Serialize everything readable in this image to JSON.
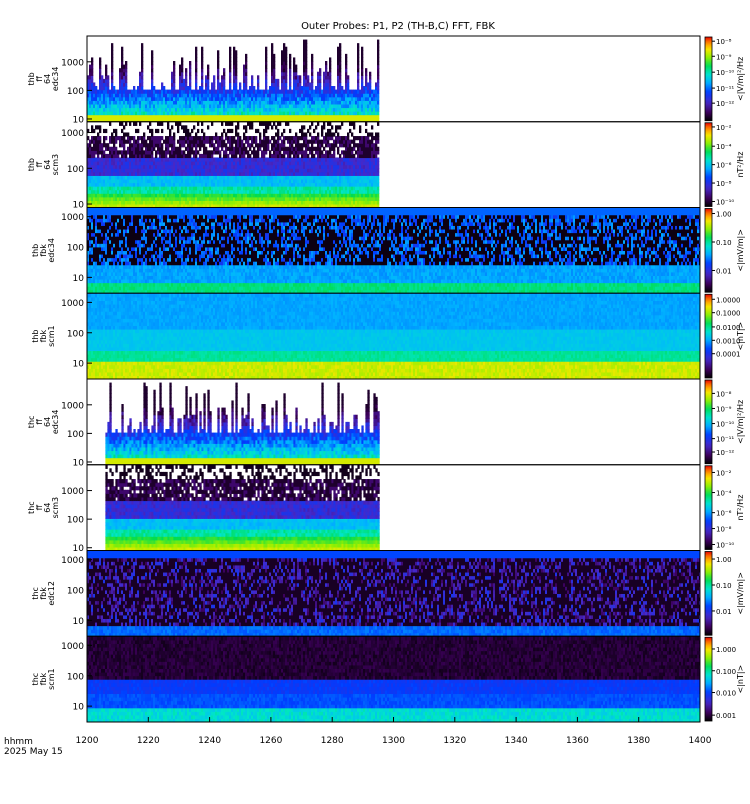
{
  "title": "Outer Probes: P1, P2 (TH-B,C) FFT, FBK",
  "footer": {
    "time_label": "hhmm",
    "date_label": "2025 May 15"
  },
  "x_axis": {
    "range": [
      1200,
      1400
    ],
    "ticks": [
      "1200",
      "1220",
      "1240",
      "1260",
      "1280",
      "1300",
      "1320",
      "1340",
      "1360",
      "1380",
      "1400"
    ]
  },
  "chart_data": [
    {
      "type": "heatmap",
      "name": "thb-ffp-e34",
      "ylabel_lines": [
        "thb",
        "ff",
        "64",
        "edc34"
      ],
      "y_ticks": [
        {
          "value": 10,
          "label": "10"
        },
        {
          "value": 100,
          "label": "100"
        },
        {
          "value": 1000,
          "label": "1000"
        }
      ],
      "ylim": [
        8,
        8000
      ],
      "y_scale": "log",
      "data_x_range": [
        1200,
        1295
      ],
      "style": "spiky",
      "colorbar": {
        "label": "<|V/m|²/Hz",
        "ticks": [
          {
            "label": "10⁻⁸",
            "frac": 0.05
          },
          {
            "label": "10⁻⁹",
            "frac": 0.23
          },
          {
            "label": "10⁻¹⁰",
            "frac": 0.42
          },
          {
            "label": "10⁻¹¹",
            "frac": 0.61
          },
          {
            "label": "10⁻¹²",
            "frac": 0.79
          }
        ]
      }
    },
    {
      "type": "heatmap",
      "name": "thb-ffp-scm3",
      "ylabel_lines": [
        "thb",
        "ff",
        "64",
        "scm3"
      ],
      "y_ticks": [
        {
          "value": 10,
          "label": "10"
        },
        {
          "value": 100,
          "label": "100"
        },
        {
          "value": 1000,
          "label": "1000"
        }
      ],
      "ylim": [
        8,
        2000
      ],
      "y_scale": "log",
      "data_x_range": [
        1200,
        1295
      ],
      "style": "spectrum-with-noise",
      "colorbar": {
        "label": "nT²/Hz",
        "ticks": [
          {
            "label": "10⁻²",
            "frac": 0.05
          },
          {
            "label": "10⁻⁴",
            "frac": 0.28
          },
          {
            "label": "10⁻⁶",
            "frac": 0.5
          },
          {
            "label": "10⁻⁸",
            "frac": 0.72
          },
          {
            "label": "10⁻¹⁰",
            "frac": 0.94
          }
        ]
      }
    },
    {
      "type": "heatmap",
      "name": "thb-fbk-e34",
      "ylabel_lines": [
        "thb",
        "fbk",
        "edc34"
      ],
      "y_ticks": [
        {
          "value": 10,
          "label": "10"
        },
        {
          "value": 100,
          "label": "100"
        },
        {
          "value": 1000,
          "label": "1000"
        }
      ],
      "ylim": [
        3,
        2000
      ],
      "y_scale": "log",
      "data_x_range": [
        1200,
        1400
      ],
      "style": "fbk-dark",
      "colorbar": {
        "label": "<|mV/m|>",
        "ticks": [
          {
            "label": "1.00",
            "frac": 0.06
          },
          {
            "label": "0.10",
            "frac": 0.4
          },
          {
            "label": "0.01",
            "frac": 0.74
          }
        ]
      }
    },
    {
      "type": "heatmap",
      "name": "thb-fbk-scm1",
      "ylabel_lines": [
        "thb",
        "fbk",
        "scm1"
      ],
      "y_ticks": [
        {
          "value": 10,
          "label": "10"
        },
        {
          "value": 100,
          "label": "100"
        },
        {
          "value": 1000,
          "label": "1000"
        }
      ],
      "ylim": [
        3,
        2000
      ],
      "y_scale": "log",
      "data_x_range": [
        1200,
        1400
      ],
      "style": "fbk-blue",
      "colorbar": {
        "label": "<|nT|>",
        "ticks": [
          {
            "label": "1.0000",
            "frac": 0.06
          },
          {
            "label": "0.1000",
            "frac": 0.22
          },
          {
            "label": "0.0100",
            "frac": 0.39
          },
          {
            "label": "0.0010",
            "frac": 0.55
          },
          {
            "label": "0.0001",
            "frac": 0.71
          }
        ]
      }
    },
    {
      "type": "heatmap",
      "name": "thc-ffp-e34",
      "ylabel_lines": [
        "thc",
        "ff",
        "64",
        "edc34"
      ],
      "y_ticks": [
        {
          "value": 10,
          "label": "10"
        },
        {
          "value": 100,
          "label": "100"
        },
        {
          "value": 1000,
          "label": "1000"
        }
      ],
      "ylim": [
        8,
        8000
      ],
      "y_scale": "log",
      "data_x_range": [
        1206,
        1295
      ],
      "style": "spiky",
      "colorbar": {
        "label": "<|V/m|²/Hz",
        "ticks": [
          {
            "label": "10⁻⁸",
            "frac": 0.16
          },
          {
            "label": "10⁻⁹",
            "frac": 0.34
          },
          {
            "label": "10⁻¹⁰",
            "frac": 0.52
          },
          {
            "label": "10⁻¹¹",
            "frac": 0.7
          },
          {
            "label": "10⁻¹²",
            "frac": 0.86
          }
        ]
      }
    },
    {
      "type": "heatmap",
      "name": "thc-ffp-scm3",
      "ylabel_lines": [
        "thc",
        "ff",
        "64",
        "scm3"
      ],
      "y_ticks": [
        {
          "value": 10,
          "label": "10"
        },
        {
          "value": 100,
          "label": "100"
        },
        {
          "value": 1000,
          "label": "1000"
        }
      ],
      "ylim": [
        8,
        8000
      ],
      "y_scale": "log",
      "data_x_range": [
        1206,
        1295
      ],
      "style": "spectrum-with-noise",
      "colorbar": {
        "label": "nT²/Hz",
        "ticks": [
          {
            "label": "10⁻²",
            "frac": 0.08
          },
          {
            "label": "10⁻⁴",
            "frac": 0.32
          },
          {
            "label": "10⁻⁶",
            "frac": 0.56
          },
          {
            "label": "10⁻⁸",
            "frac": 0.75
          },
          {
            "label": "10⁻¹⁰",
            "frac": 0.94
          }
        ]
      }
    },
    {
      "type": "heatmap",
      "name": "thc-fbk-e12",
      "ylabel_lines": [
        "thc",
        "fbk",
        "edc12"
      ],
      "y_ticks": [
        {
          "value": 10,
          "label": "10"
        },
        {
          "value": 100,
          "label": "100"
        },
        {
          "value": 1000,
          "label": "1000"
        }
      ],
      "ylim": [
        3,
        2000
      ],
      "y_scale": "log",
      "data_x_range": [
        1200,
        1400
      ],
      "style": "fbk-purple",
      "colorbar": {
        "label": "<|mV/m|>",
        "ticks": [
          {
            "label": "1.00",
            "frac": 0.09
          },
          {
            "label": "0.10",
            "frac": 0.4
          },
          {
            "label": "0.01",
            "frac": 0.71
          }
        ]
      }
    },
    {
      "type": "heatmap",
      "name": "thc-fbk-scm1",
      "ylabel_lines": [
        "thc",
        "fbk",
        "scm1"
      ],
      "y_ticks": [
        {
          "value": 10,
          "label": "10"
        },
        {
          "value": 100,
          "label": "100"
        },
        {
          "value": 1000,
          "label": "1000"
        }
      ],
      "ylim": [
        3,
        2000
      ],
      "y_scale": "log",
      "data_x_range": [
        1200,
        1400
      ],
      "style": "fbk-mixed",
      "colorbar": {
        "label": "<|nT|>",
        "ticks": [
          {
            "label": "1.000",
            "frac": 0.14
          },
          {
            "label": "0.100",
            "frac": 0.4
          },
          {
            "label": "0.010",
            "frac": 0.66
          },
          {
            "label": "0.001",
            "frac": 0.93
          }
        ]
      }
    }
  ]
}
